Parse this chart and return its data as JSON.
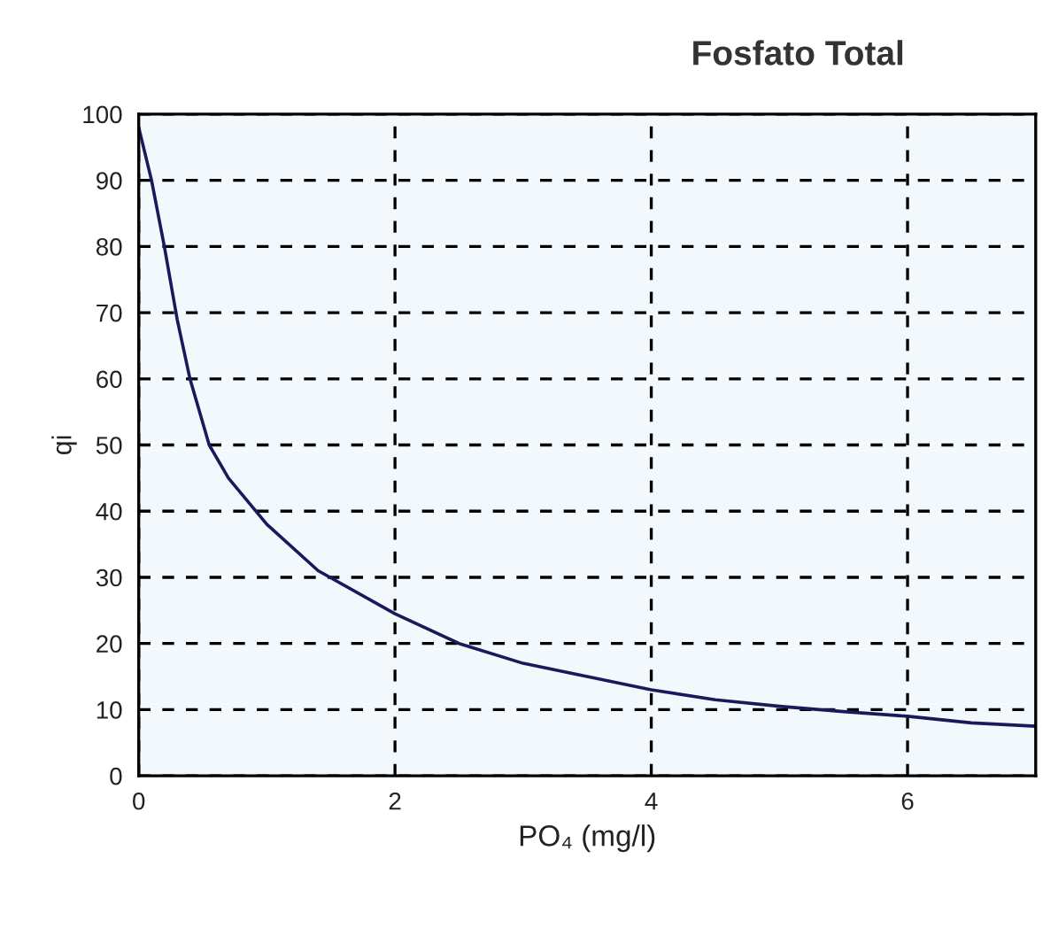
{
  "chart_data": {
    "type": "line",
    "title": "Fosfato Total",
    "xlabel": "PO₄ (mg/l)",
    "ylabel": "qi",
    "x": [
      0,
      0.1,
      0.2,
      0.3,
      0.4,
      0.55,
      0.7,
      1,
      1.4,
      2,
      2.5,
      3,
      3.5,
      4,
      4.5,
      5,
      5.5,
      6,
      6.5,
      7
    ],
    "series": [
      {
        "color": "#1a1a5a",
        "values": [
          98,
          90,
          80,
          69,
          60,
          50,
          45,
          38,
          31,
          24.5,
          20,
          17,
          15,
          13,
          11.5,
          10.5,
          9.7,
          9,
          8,
          7.5
        ]
      }
    ],
    "xlim": [
      0,
      7
    ],
    "ylim": [
      0,
      100
    ],
    "xticks": [
      0,
      2,
      4,
      6
    ],
    "yticks": [
      0,
      10,
      20,
      30,
      40,
      50,
      60,
      70,
      80,
      90,
      100
    ],
    "grid": true,
    "marker": "none",
    "line_style": "solid"
  }
}
